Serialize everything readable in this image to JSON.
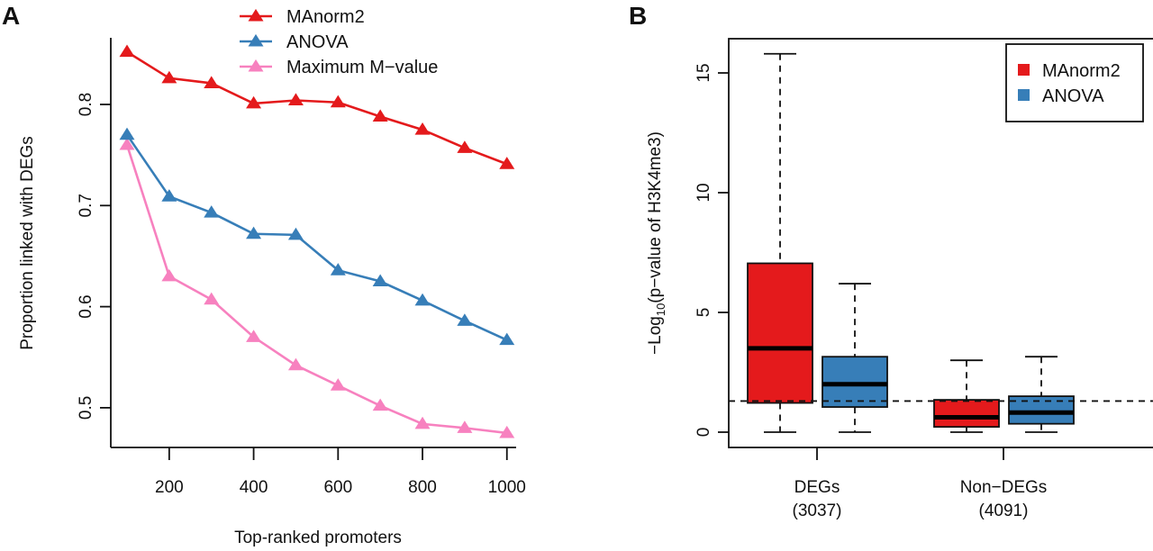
{
  "chart_data": [
    {
      "panel": "A",
      "type": "line",
      "title": "",
      "xlabel": "Top-ranked promoters",
      "ylabel": "Proportion linked with DEGs",
      "x": [
        100,
        200,
        300,
        400,
        500,
        600,
        700,
        800,
        900,
        1000
      ],
      "xticks": [
        200,
        400,
        600,
        800,
        1000
      ],
      "xtick_labels": [
        "200",
        "400",
        "600",
        "800",
        "1000"
      ],
      "yticks": [
        0.5,
        0.6,
        0.7,
        0.8
      ],
      "ytick_labels": [
        "0.5",
        "0.6",
        "0.7",
        "0.8"
      ],
      "xlim": [
        80,
        1020
      ],
      "ylim": [
        0.47,
        0.86
      ],
      "grid": false,
      "legend_position": "top",
      "marker": "triangle",
      "series": [
        {
          "name": "MAnorm2",
          "color": "#e41a1c",
          "values": [
            0.852,
            0.826,
            0.821,
            0.801,
            0.804,
            0.802,
            0.788,
            0.775,
            0.757,
            0.741
          ]
        },
        {
          "name": "ANOVA",
          "color": "#377eb8",
          "values": [
            0.77,
            0.709,
            0.693,
            0.672,
            0.671,
            0.636,
            0.625,
            0.606,
            0.586,
            0.567
          ]
        },
        {
          "name": "Maximum M−value",
          "color": "#f781bf",
          "values": [
            0.76,
            0.63,
            0.607,
            0.57,
            0.542,
            0.522,
            0.502,
            0.484,
            0.48,
            0.475
          ]
        }
      ]
    },
    {
      "panel": "B",
      "type": "box",
      "title": "",
      "xlabel": "",
      "ylabel_prefix": "−Log",
      "ylabel_sub": "10",
      "ylabel_suffix": "(p−value of H3K4me3)",
      "categories": [
        {
          "name": "DEGs",
          "count": "(3037)"
        },
        {
          "name": "Non−DEGs",
          "count": "(4091)"
        }
      ],
      "yticks": [
        0,
        5,
        10,
        15
      ],
      "ytick_labels": [
        "0",
        "5",
        "10",
        "15"
      ],
      "ylim": [
        -0.6,
        16.5
      ],
      "grid": false,
      "legend_position": "top-right",
      "reference_line": 1.3,
      "series": [
        {
          "name": "MAnorm2",
          "color": "#e41a1c",
          "boxes": [
            {
              "min": 0,
              "q1": 1.22,
              "median": 3.5,
              "q3": 7.05,
              "max": 15.8
            },
            {
              "min": 0,
              "q1": 0.22,
              "median": 0.62,
              "q3": 1.35,
              "max": 3.0
            }
          ]
        },
        {
          "name": "ANOVA",
          "color": "#377eb8",
          "boxes": [
            {
              "min": 0,
              "q1": 1.05,
              "median": 2.0,
              "q3": 3.15,
              "max": 6.2
            },
            {
              "min": 0,
              "q1": 0.35,
              "median": 0.82,
              "q3": 1.5,
              "max": 3.15
            }
          ]
        }
      ]
    }
  ],
  "labels": {
    "panel_a": "A",
    "panel_b": "B"
  }
}
